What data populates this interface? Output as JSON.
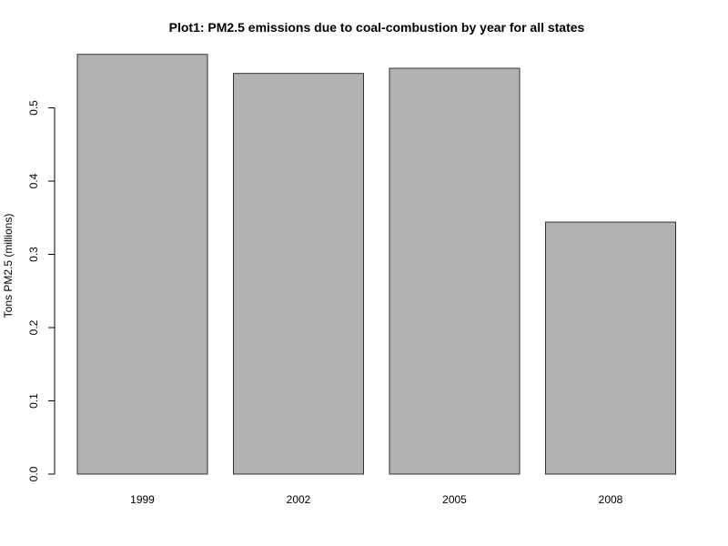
{
  "chart_data": {
    "type": "bar",
    "title": "Plot1: PM2.5 emissions due to coal-combustion by year for all states",
    "xlabel": "",
    "ylabel": "Tons PM2.5 (millions)",
    "categories": [
      "1999",
      "2002",
      "2005",
      "2008"
    ],
    "values": [
      0.573,
      0.547,
      0.554,
      0.344
    ],
    "ylim": [
      0,
      0.6
    ],
    "yticks": [
      0.0,
      0.1,
      0.2,
      0.3,
      0.4,
      0.5
    ],
    "ytick_labels": [
      "0.0",
      "0.1",
      "0.2",
      "0.3",
      "0.4",
      "0.5"
    ],
    "grid": false,
    "legend": "none",
    "colors": {
      "bar_fill": "#b2b2b2",
      "bar_stroke": "#333333",
      "axis": "#000000"
    }
  }
}
